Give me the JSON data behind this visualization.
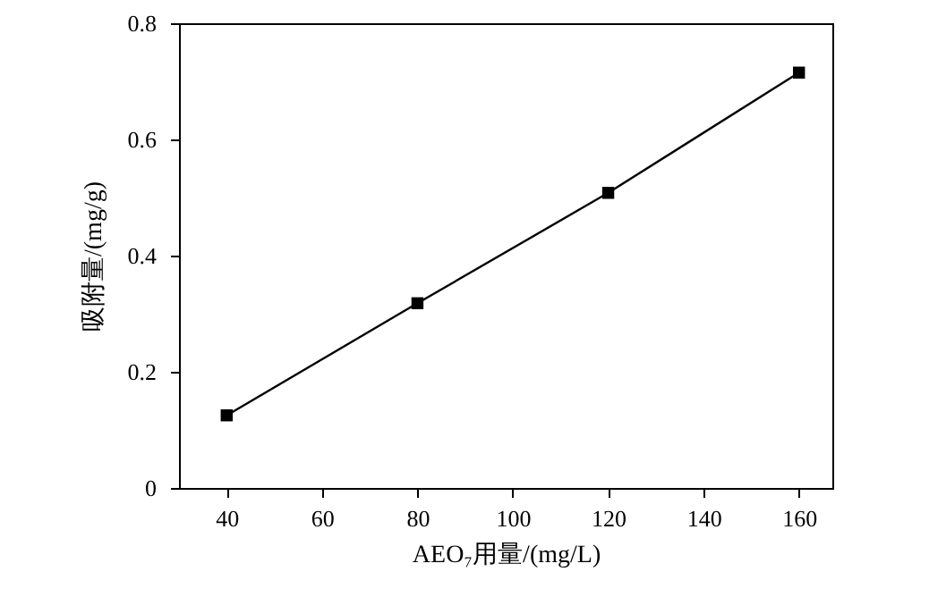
{
  "chart_data": {
    "type": "line",
    "xlabel": "AEO₇用量/(mg/L)",
    "ylabel": "吸附量/(mg/g)",
    "x": [
      40,
      80,
      120,
      160
    ],
    "series": [
      {
        "color": "#000000",
        "values": [
          0.125,
          0.318,
          0.508,
          0.715
        ]
      }
    ],
    "xlim": [
      30,
      167
    ],
    "xticks": [
      40,
      60,
      80,
      100,
      120,
      140,
      160
    ],
    "ylim": [
      0,
      0.8
    ],
    "yticks": [
      0,
      0.2,
      0.4,
      0.6,
      0.8
    ],
    "marker": "square",
    "line_style": "solid",
    "grid": false
  }
}
